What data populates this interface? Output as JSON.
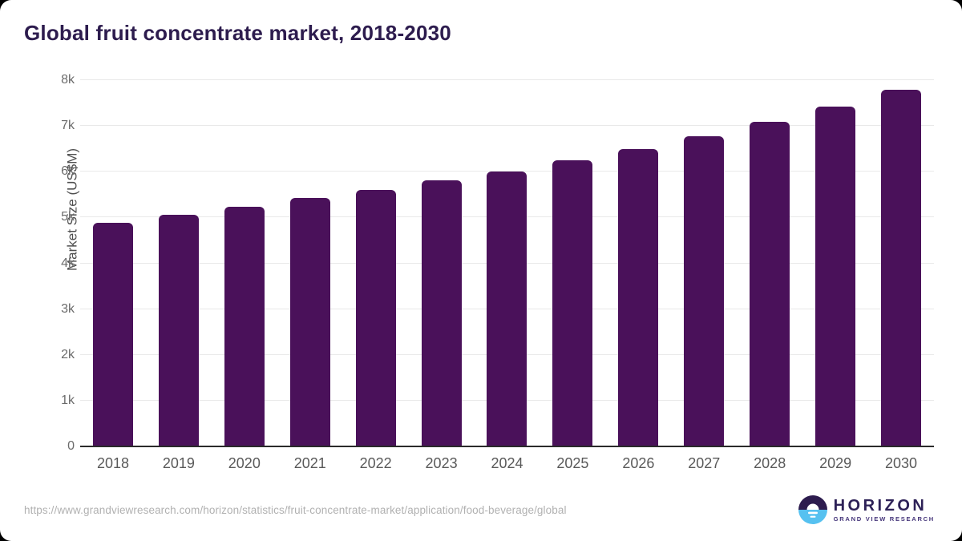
{
  "page": {
    "title": "Global fruit concentrate market, 2018-2030",
    "source_url": "https://www.grandviewresearch.com/horizon/statistics/fruit-concentrate-market/application/food-beverage/global"
  },
  "logo": {
    "name": "HORIZON",
    "subtitle": "GRAND VIEW RESEARCH"
  },
  "colors": {
    "bar": "#4a115a",
    "title_text": "#2d1c4e",
    "gridline": "#e9e9e9",
    "baseline": "#2b2b2b",
    "axis_text": "#595959",
    "url_text": "#b1b1b1",
    "logo_purple": "#2d1c4e",
    "logo_blue": "#56c1f0"
  },
  "chart_data": {
    "type": "bar",
    "title": "Global fruit concentrate market, 2018-2030",
    "categories": [
      "2018",
      "2019",
      "2020",
      "2021",
      "2022",
      "2023",
      "2024",
      "2025",
      "2026",
      "2027",
      "2028",
      "2029",
      "2030"
    ],
    "values": [
      4880,
      5060,
      5230,
      5420,
      5600,
      5810,
      6000,
      6250,
      6500,
      6780,
      7090,
      7420,
      7790
    ],
    "xlabel": "",
    "ylabel": "Market Size (US$M)",
    "ylim": [
      0,
      8000
    ],
    "yticks_labels": [
      "0",
      "1k",
      "2k",
      "3k",
      "4k",
      "5k",
      "6k",
      "7k",
      "8k"
    ],
    "yticks_values": [
      0,
      1000,
      2000,
      3000,
      4000,
      5000,
      6000,
      7000,
      8000
    ],
    "grid": true,
    "legend": false,
    "bar_color": "#4a115a"
  }
}
